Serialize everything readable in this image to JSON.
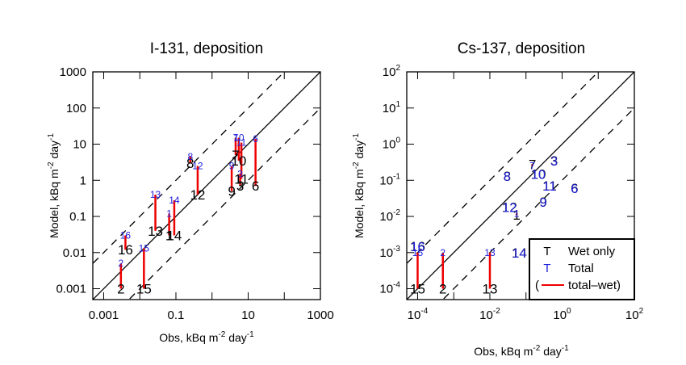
{
  "chart_data": [
    {
      "type": "scatter",
      "title": "I-131, deposition",
      "xlabel": "Obs, kBq m^-2 day^-1",
      "ylabel": "Model, kBq m^-2 day^-1",
      "xscale": "log",
      "yscale": "log",
      "xlim": [
        0.0005,
        1000
      ],
      "ylim": [
        0.0005,
        1000
      ],
      "xticks": [
        0.001,
        0.1,
        10,
        1000
      ],
      "xtick_labels": [
        "0.001",
        "0.1",
        "10",
        "1000"
      ],
      "yticks": [
        0.001,
        0.01,
        0.1,
        1,
        10,
        100,
        1000
      ],
      "ytick_labels": [
        "0.001",
        "0.01",
        "0.1",
        "1",
        "10",
        "100",
        "1000"
      ],
      "reference_lines": [
        {
          "name": "1:1",
          "factor": 1,
          "style": "solid"
        },
        {
          "name": "factor 10 above",
          "factor": 10,
          "style": "dashed"
        },
        {
          "name": "factor 10 below",
          "factor": 0.1,
          "style": "dashed"
        }
      ],
      "points": [
        {
          "label": "1",
          "obs": 0.065,
          "wet": 0.03,
          "total": 0.12
        },
        {
          "label": "2",
          "obs": 0.003,
          "wet": 0.001,
          "total": 0.005
        },
        {
          "label": "3",
          "obs": 6.0,
          "wet": 0.7,
          "total": 1.5
        },
        {
          "label": "6",
          "obs": 16.0,
          "wet": 0.7,
          "total": 14.0
        },
        {
          "label": "7",
          "obs": 4.5,
          "wet": 5.0,
          "total": 15.0
        },
        {
          "label": "8",
          "obs": 0.25,
          "wet": 3.0,
          "total": 4.5
        },
        {
          "label": "9",
          "obs": 3.5,
          "wet": 0.5,
          "total": 2.5
        },
        {
          "label": "10",
          "obs": 5.5,
          "wet": 3.5,
          "total": 15.0
        },
        {
          "label": "11",
          "obs": 6.5,
          "wet": 1.1,
          "total": 11.0
        },
        {
          "label": "12",
          "obs": 0.4,
          "wet": 0.4,
          "total": 2.5
        },
        {
          "label": "13",
          "obs": 0.027,
          "wet": 0.04,
          "total": 0.4
        },
        {
          "label": "14",
          "obs": 0.09,
          "wet": 0.03,
          "total": 0.28
        },
        {
          "label": "15",
          "obs": 0.013,
          "wet": 0.001,
          "total": 0.013
        },
        {
          "label": "16",
          "obs": 0.004,
          "wet": 0.012,
          "total": 0.03
        }
      ]
    },
    {
      "type": "scatter",
      "title": "Cs-137, deposition",
      "xlabel": "Obs, kBq m^-2 day^-1",
      "ylabel": "Model, kBq m^-2 day^-1",
      "xscale": "log",
      "yscale": "log",
      "xlim": [
        5e-05,
        100
      ],
      "ylim": [
        5e-05,
        100
      ],
      "xticks": [
        0.0001,
        0.01,
        1,
        100
      ],
      "xtick_labels": [
        [
          "10",
          "-4"
        ],
        [
          "10",
          "-2"
        ],
        [
          "10",
          "0"
        ],
        [
          "10",
          "2"
        ]
      ],
      "yticks": [
        0.0001,
        0.001,
        0.01,
        0.1,
        1,
        10,
        100
      ],
      "ytick_labels": [
        [
          "10",
          "-4"
        ],
        [
          "10",
          "-3"
        ],
        [
          "10",
          "-2"
        ],
        [
          "10",
          "-1"
        ],
        [
          "10",
          "0"
        ],
        [
          "10",
          "1"
        ],
        [
          "10",
          "2"
        ]
      ],
      "reference_lines": [
        {
          "name": "1:1",
          "factor": 1,
          "style": "solid"
        },
        {
          "name": "factor 10 above",
          "factor": 10,
          "style": "dashed"
        },
        {
          "name": "factor 10 below",
          "factor": 0.1,
          "style": "dashed"
        }
      ],
      "points": [
        {
          "label": "1",
          "obs": 0.055,
          "wet": 0.011,
          "total": 0.012
        },
        {
          "label": "2",
          "obs": 0.0005,
          "wet": 0.0001,
          "total": 0.001
        },
        {
          "label": "3",
          "obs": 0.6,
          "wet": 0.35,
          "total": 0.35
        },
        {
          "label": "6",
          "obs": 2.2,
          "wet": 0.06,
          "total": 0.06
        },
        {
          "label": "7",
          "obs": 0.15,
          "wet": 0.28,
          "total": 0.25
        },
        {
          "label": "8",
          "obs": 0.03,
          "wet": 0.13,
          "total": 0.13
        },
        {
          "label": "9",
          "obs": 0.3,
          "wet": 0.025,
          "total": 0.025
        },
        {
          "label": "10",
          "obs": 0.22,
          "wet": 0.15,
          "total": 0.15
        },
        {
          "label": "11",
          "obs": 0.45,
          "wet": 0.07,
          "total": 0.07
        },
        {
          "label": "12",
          "obs": 0.035,
          "wet": 0.018,
          "total": 0.018
        },
        {
          "label": "13",
          "obs": 0.01,
          "wet": 0.0001,
          "total": 0.001
        },
        {
          "label": "14",
          "obs": 0.065,
          "wet": 0.001,
          "total": 0.001
        },
        {
          "label": "15",
          "obs": 0.0001,
          "wet": 0.0001,
          "total": 0.001
        },
        {
          "label": "16",
          "obs": 0.0001,
          "wet": 0.0015,
          "total": 0.0015
        }
      ],
      "legend": {
        "placement": "bottom-right",
        "entries": [
          {
            "symbol": "T",
            "label": "Wet only",
            "color": "#000000"
          },
          {
            "symbol": "T",
            "label": "Total",
            "color": "#2222dd"
          },
          {
            "symbol": "line",
            "label": "total–wet)",
            "prefix": "(",
            "color": "#ee0000"
          }
        ]
      }
    }
  ],
  "colors": {
    "wet": "#000000",
    "total": "#2222dd",
    "diff_line": "#ee0000",
    "axis": "#000000"
  }
}
